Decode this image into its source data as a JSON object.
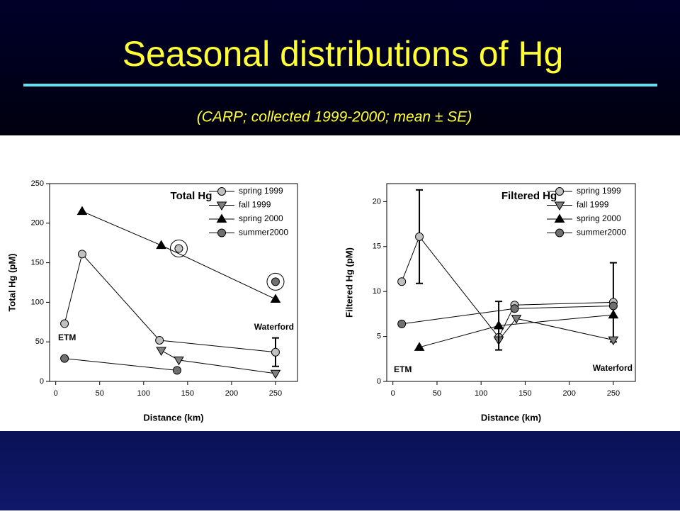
{
  "header": {
    "title": "Seasonal distributions of Hg",
    "subtitle": "(CARP; collected 1999-2000; mean ± SE)"
  },
  "chart_data": [
    {
      "type": "line",
      "title": "Total Hg",
      "x_label": "Distance (km)",
      "y_label": "Total Hg (pM)",
      "xlim": [
        -7,
        275
      ],
      "xticks": [
        0,
        50,
        100,
        150,
        200,
        250
      ],
      "ylim": [
        0,
        250
      ],
      "yticks": [
        0,
        50,
        100,
        150,
        200,
        250
      ],
      "annotations": [
        "ETM",
        "Waterford"
      ],
      "series": [
        {
          "name": "spring 1999",
          "color": "#c0c0c0",
          "marker": "circle",
          "x": [
            10,
            30,
            118,
            250
          ],
          "values": [
            73,
            161,
            52,
            37
          ],
          "errors": [
            null,
            null,
            null,
            18
          ],
          "outliers": {
            "x": [
              140
            ],
            "values": [
              168
            ]
          }
        },
        {
          "name": "fall 1999",
          "color": "#808080",
          "marker": "triangle-down",
          "x": [
            120,
            140,
            250
          ],
          "values": [
            39,
            27,
            10
          ]
        },
        {
          "name": "spring 2000",
          "color": "#000000",
          "marker": "triangle-up",
          "x": [
            30,
            120,
            250
          ],
          "values": [
            215,
            172,
            104
          ]
        },
        {
          "name": "summer2000",
          "color": "#707070",
          "marker": "circle",
          "x": [
            10,
            138
          ],
          "values": [
            29,
            14
          ],
          "outliers": {
            "x": [
              250
            ],
            "values": [
              126
            ]
          }
        }
      ]
    },
    {
      "type": "line",
      "title": "Filtered Hg",
      "x_label": "Distance (km)",
      "y_label": "Filtered Hg (pM)",
      "xlim": [
        -7,
        275
      ],
      "xticks": [
        0,
        50,
        100,
        150,
        200,
        250
      ],
      "ylim": [
        0,
        22
      ],
      "yticks": [
        0,
        5,
        10,
        15,
        20
      ],
      "annotations": [
        "ETM",
        "Waterford"
      ],
      "series": [
        {
          "name": "spring 1999",
          "color": "#c0c0c0",
          "marker": "circle",
          "x": [
            10,
            30,
            120,
            138,
            250
          ],
          "values": [
            11.1,
            16.1,
            4.9,
            8.5,
            8.8
          ],
          "errors": [
            null,
            5.2,
            null,
            null,
            4.4
          ]
        },
        {
          "name": "fall 1999",
          "color": "#808080",
          "marker": "triangle-down",
          "x": [
            120,
            140,
            250
          ],
          "values": [
            4.6,
            7.0,
            4.6
          ]
        },
        {
          "name": "spring 2000",
          "color": "#000000",
          "marker": "triangle-up",
          "x": [
            30,
            120,
            250
          ],
          "values": [
            3.8,
            6.2,
            7.4
          ],
          "errors": [
            null,
            2.7,
            null
          ]
        },
        {
          "name": "summer2000",
          "color": "#707070",
          "marker": "circle",
          "x": [
            10,
            138,
            250
          ],
          "values": [
            6.4,
            8.1,
            8.4
          ]
        }
      ]
    }
  ]
}
